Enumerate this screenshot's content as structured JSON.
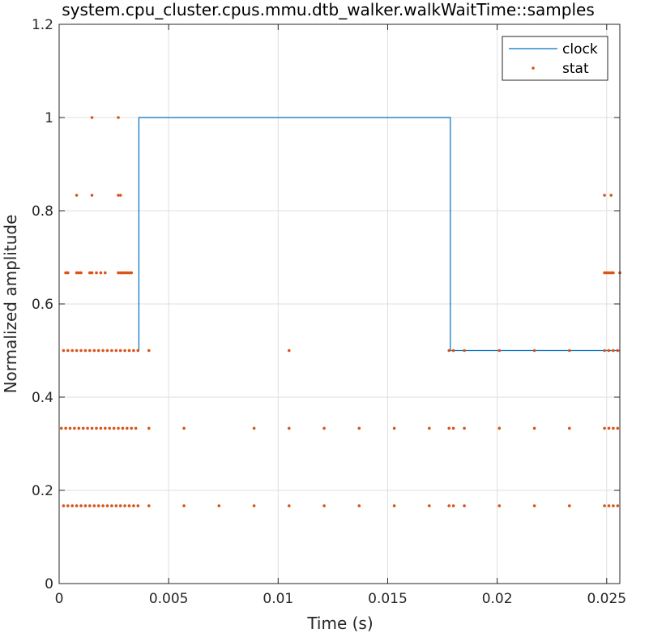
{
  "chart_data": {
    "type": "line",
    "title": "system.cpu_cluster.cpus.mmu.dtb_walker.walkWaitTime::samples",
    "xlabel": "Time (s)",
    "ylabel": "Normalized amplitude",
    "xlim": [
      0,
      0.0256
    ],
    "ylim": [
      0,
      1.2
    ],
    "grid": true,
    "legend": "top-right",
    "x_ticks": [
      "0",
      "0.005",
      "0.01",
      "0.015",
      "0.02",
      "0.025"
    ],
    "x_tick_values": [
      0,
      0.005,
      0.01,
      0.015,
      0.02,
      0.025
    ],
    "y_ticks": [
      "0",
      "0.2",
      "0.4",
      "0.6",
      "0.8",
      "1",
      "1.2"
    ],
    "y_tick_values": [
      0,
      0.2,
      0.4,
      0.6,
      0.8,
      1.0,
      1.2
    ],
    "series": [
      {
        "name": "clock",
        "style": "line",
        "color": "#0072BD",
        "x": [
          0.00364,
          0.00364,
          0.01786,
          0.01786,
          0.0256
        ],
        "y": [
          0.5,
          1.0,
          1.0,
          0.5,
          0.5
        ]
      },
      {
        "name": "stat",
        "style": "dots",
        "color": "#D95319",
        "x": [
          0.0002,
          0.0004,
          0.0006,
          0.0008,
          0.001,
          0.0012,
          0.0014,
          0.0016,
          0.0018,
          0.002,
          0.0022,
          0.0024,
          0.0026,
          0.0028,
          0.003,
          0.0032,
          0.0034,
          0.0036,
          0.0041,
          0.0057,
          0.0073,
          0.0089,
          0.0105,
          0.0121,
          0.0137,
          0.0153,
          0.0169,
          0.0178,
          0.018,
          0.0185,
          0.0201,
          0.0217,
          0.0233,
          0.0249,
          0.0251,
          0.0253,
          0.0255,
          0.0001,
          0.0003,
          0.0005,
          0.0007,
          0.0009,
          0.0011,
          0.0013,
          0.0015,
          0.0017,
          0.0019,
          0.0021,
          0.0023,
          0.0025,
          0.0027,
          0.0029,
          0.0031,
          0.0033,
          0.0035,
          0.0041,
          0.0057,
          0.0089,
          0.0105,
          0.0121,
          0.0137,
          0.0153,
          0.0169,
          0.0178,
          0.018,
          0.0185,
          0.0201,
          0.0217,
          0.0233,
          0.0249,
          0.0251,
          0.0253,
          0.0255,
          0.0002,
          0.0004,
          0.0006,
          0.0008,
          0.001,
          0.0012,
          0.0014,
          0.0016,
          0.0018,
          0.002,
          0.0022,
          0.0024,
          0.0026,
          0.0028,
          0.003,
          0.0032,
          0.0034,
          0.0036,
          0.0041,
          0.0105,
          0.0178,
          0.018,
          0.0185,
          0.0201,
          0.0217,
          0.0233,
          0.0249,
          0.0251,
          0.0253,
          0.0255,
          0.0003,
          0.0004,
          0.0008,
          0.0009,
          0.001,
          0.0014,
          0.0015,
          0.0017,
          0.0019,
          0.0021,
          0.0027,
          0.0028,
          0.0029,
          0.003,
          0.0031,
          0.0032,
          0.0033,
          0.0249,
          0.025,
          0.0251,
          0.0252,
          0.0253,
          0.0256,
          0.0008,
          0.0015,
          0.0027,
          0.0028,
          0.0249,
          0.0252,
          0.0015,
          0.0027
        ],
        "y": [
          0.1667,
          0.1667,
          0.1667,
          0.1667,
          0.1667,
          0.1667,
          0.1667,
          0.1667,
          0.1667,
          0.1667,
          0.1667,
          0.1667,
          0.1667,
          0.1667,
          0.1667,
          0.1667,
          0.1667,
          0.1667,
          0.1667,
          0.1667,
          0.1667,
          0.1667,
          0.1667,
          0.1667,
          0.1667,
          0.1667,
          0.1667,
          0.1667,
          0.1667,
          0.1667,
          0.1667,
          0.1667,
          0.1667,
          0.1667,
          0.1667,
          0.1667,
          0.1667,
          0.3333,
          0.3333,
          0.3333,
          0.3333,
          0.3333,
          0.3333,
          0.3333,
          0.3333,
          0.3333,
          0.3333,
          0.3333,
          0.3333,
          0.3333,
          0.3333,
          0.3333,
          0.3333,
          0.3333,
          0.3333,
          0.3333,
          0.3333,
          0.3333,
          0.3333,
          0.3333,
          0.3333,
          0.3333,
          0.3333,
          0.3333,
          0.3333,
          0.3333,
          0.3333,
          0.3333,
          0.3333,
          0.3333,
          0.3333,
          0.3333,
          0.3333,
          0.5,
          0.5,
          0.5,
          0.5,
          0.5,
          0.5,
          0.5,
          0.5,
          0.5,
          0.5,
          0.5,
          0.5,
          0.5,
          0.5,
          0.5,
          0.5,
          0.5,
          0.5,
          0.5,
          0.5,
          0.5,
          0.5,
          0.5,
          0.5,
          0.5,
          0.5,
          0.5,
          0.5,
          0.5,
          0.5,
          0.6667,
          0.6667,
          0.6667,
          0.6667,
          0.6667,
          0.6667,
          0.6667,
          0.6667,
          0.6667,
          0.6667,
          0.6667,
          0.6667,
          0.6667,
          0.6667,
          0.6667,
          0.6667,
          0.6667,
          0.6667,
          0.6667,
          0.6667,
          0.6667,
          0.6667,
          0.6667,
          0.8333,
          0.8333,
          0.8333,
          0.8333,
          0.8333,
          0.8333,
          1.0,
          1.0
        ]
      }
    ]
  }
}
